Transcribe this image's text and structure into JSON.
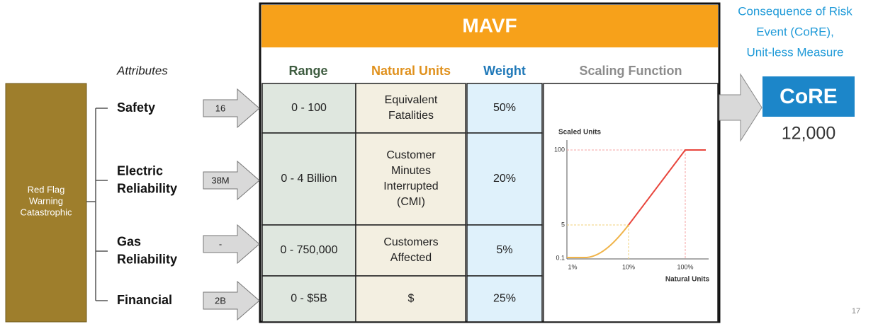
{
  "source": {
    "lines": [
      "Red Flag",
      "Warning",
      "Catastrophic"
    ]
  },
  "attributes_header": "Attributes",
  "mavf": {
    "title": "MAVF",
    "columns": [
      "Range",
      "Natural Units",
      "Weight",
      "Scaling Function"
    ],
    "rows": [
      {
        "attribute": [
          "Safety"
        ],
        "input": "16",
        "range": "0 - 100",
        "units": [
          "Equivalent",
          "Fatalities"
        ],
        "weight": "50%"
      },
      {
        "attribute": [
          "Electric",
          "Reliability"
        ],
        "input": "38M",
        "range": "0 - 4 Billion",
        "units": [
          "Customer",
          "Minutes",
          "Interrupted",
          "(CMI)"
        ],
        "weight": "20%"
      },
      {
        "attribute": [
          "Gas",
          "Reliability"
        ],
        "input": "-",
        "range": "0 - 750,000",
        "units": [
          "Customers",
          "Affected"
        ],
        "weight": "5%"
      },
      {
        "attribute": [
          "Financial"
        ],
        "input": "2B",
        "range": "0 - $5B",
        "units": [
          "$"
        ],
        "weight": "25%"
      }
    ]
  },
  "scaling_chart": {
    "y_title": "Scaled Units",
    "x_title": "Natural Units",
    "y_labels": [
      "100",
      "5",
      "0.1"
    ],
    "x_labels": [
      "1%",
      "10%",
      "100%"
    ]
  },
  "output": {
    "caption": [
      "Consequence of Risk",
      "Event (CoRE),",
      "Unit-less Measure"
    ],
    "label": "CoRE",
    "value": "12,000"
  },
  "page_number": "17"
}
